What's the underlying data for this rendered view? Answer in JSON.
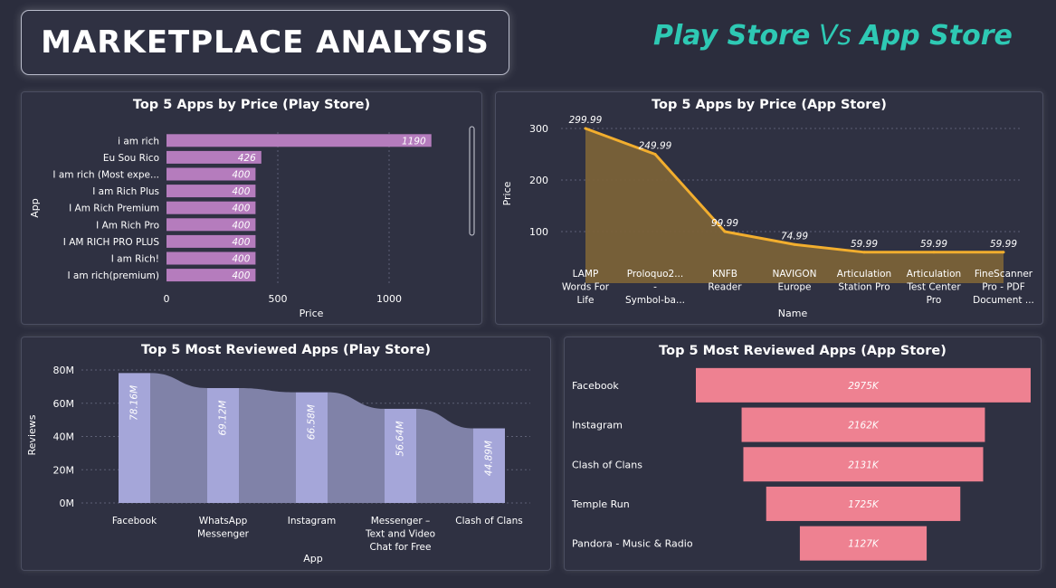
{
  "header": {
    "title": "MARKETPLACE ANALYSIS",
    "subtitle_a": "Play Store",
    "subtitle_vs": " Vs ",
    "subtitle_b": "App Store"
  },
  "colors": {
    "accent": "#2ec9b4",
    "bar_purple": "#b57cbd",
    "area_fill": "#7a6238",
    "line_orange": "#f2ae2e",
    "ribbon_bar": "#a5a6d9",
    "ribbon_band": "#8082a8",
    "funnel_pink": "#ee8191"
  },
  "chart_data": [
    {
      "id": "play_price",
      "type": "bar",
      "orientation": "horizontal",
      "title": "Top 5 Apps by Price (Play Store)",
      "xlabel": "Price",
      "ylabel": "App",
      "xlim": [
        0,
        1250
      ],
      "xticks": [
        0,
        500,
        1000
      ],
      "categories": [
        "i am rich",
        "Eu Sou Rico",
        "I am rich (Most expe...",
        "I am Rich Plus",
        "I Am Rich Premium",
        "I Am Rich Pro",
        "I AM RICH PRO PLUS",
        "I am Rich!",
        "I am rich(premium)"
      ],
      "values": [
        1190,
        426,
        400,
        400,
        400,
        400,
        400,
        400,
        400
      ],
      "data_labels": [
        "1190",
        "426",
        "400",
        "400",
        "400",
        "400",
        "400",
        "400",
        "400"
      ],
      "grid": true
    },
    {
      "id": "app_price",
      "type": "area",
      "title": "Top 5 Apps by Price (App Store)",
      "xlabel": "Name",
      "ylabel": "Price",
      "ylim": [
        0,
        300
      ],
      "yticks": [
        100,
        200,
        300
      ],
      "categories": [
        [
          "LAMP",
          "Words For",
          "Life"
        ],
        [
          "Proloquo2...",
          "-",
          "Symbol-ba..."
        ],
        [
          "KNFB",
          "Reader"
        ],
        [
          "NAVIGON",
          "Europe"
        ],
        [
          "Articulation",
          "Station Pro"
        ],
        [
          "Articulation",
          "Test Center",
          "Pro"
        ],
        [
          "FineScanner",
          "Pro - PDF",
          "Document ..."
        ]
      ],
      "values": [
        299.99,
        249.99,
        99.99,
        74.99,
        59.99,
        59.99,
        59.99
      ],
      "data_labels": [
        "299.99",
        "249.99",
        "99.99",
        "74.99",
        "59.99",
        "59.99",
        "59.99"
      ],
      "grid": true
    },
    {
      "id": "play_reviews",
      "type": "bar",
      "subtype": "ribbon",
      "title": "Top 5 Most Reviewed Apps (Play Store)",
      "xlabel": "App",
      "ylabel": "Reviews",
      "ylim": [
        0,
        80000000
      ],
      "yticks": [
        0,
        20000000,
        40000000,
        60000000,
        80000000
      ],
      "ytick_labels": [
        "0M",
        "20M",
        "40M",
        "60M",
        "80M"
      ],
      "categories": [
        [
          "Facebook"
        ],
        [
          "WhatsApp",
          "Messenger"
        ],
        [
          "Instagram"
        ],
        [
          "Messenger –",
          "Text and Video",
          "Chat for Free"
        ],
        [
          "Clash of Clans"
        ]
      ],
      "values": [
        78160000,
        69120000,
        66580000,
        56640000,
        44890000
      ],
      "data_labels": [
        "78.16M",
        "69.12M",
        "66.58M",
        "56.64M",
        "44.89M"
      ],
      "grid": true
    },
    {
      "id": "app_reviews",
      "type": "bar",
      "subtype": "funnel",
      "title": "Top 5 Most Reviewed Apps (App Store)",
      "categories": [
        "Facebook",
        "Instagram",
        "Clash of Clans",
        "Temple Run",
        "Pandora - Music & Radio"
      ],
      "values": [
        2975000,
        2162000,
        2131000,
        1725000,
        1127000
      ],
      "data_labels": [
        "2975K",
        "2162K",
        "2131K",
        "1725K",
        "1127K"
      ]
    }
  ]
}
